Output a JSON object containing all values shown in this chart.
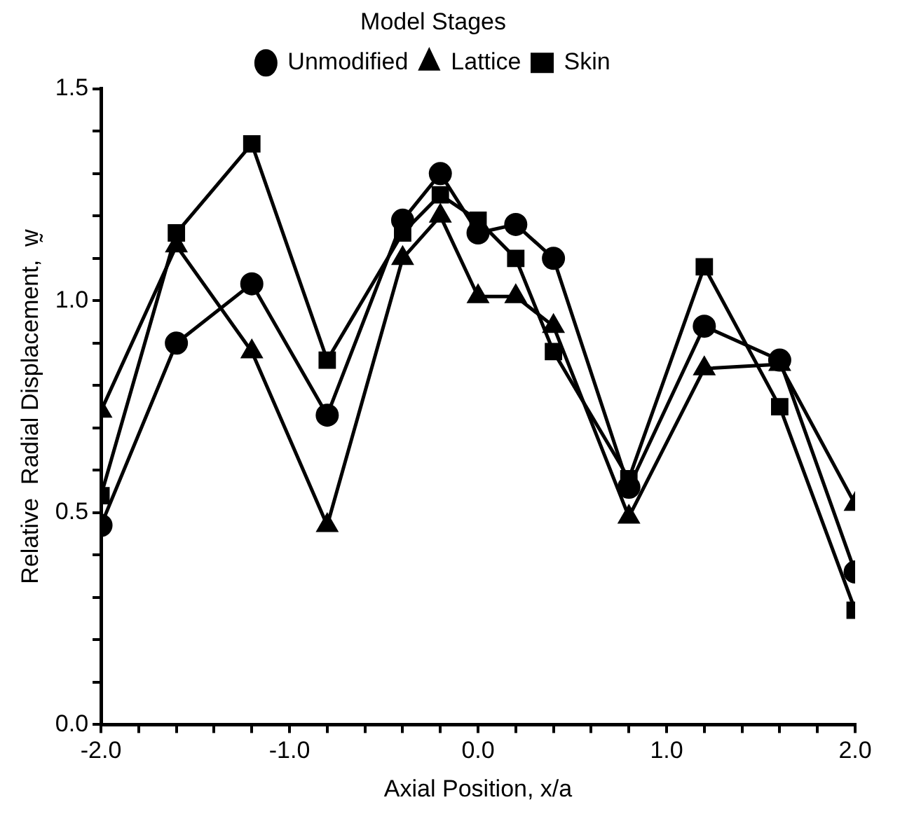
{
  "chart_data": {
    "type": "line",
    "xlabel": "Axial Position, x/a",
    "ylabel": "Relative  Radial Displacement,  w̰",
    "legend_title": "Model Stages",
    "legend": "top",
    "grid": false,
    "line_style": "solid",
    "x": [
      -2.0,
      -1.6,
      -1.2,
      -0.8,
      -0.4,
      -0.2,
      0.0,
      0.2,
      0.4,
      0.8,
      1.2,
      1.6,
      2.0
    ],
    "xlim": [
      -2.0,
      2.0
    ],
    "xticks": [
      {
        "value": -2,
        "label": "-2.0"
      },
      {
        "value": -1.8,
        "label": null
      },
      {
        "value": -1.6,
        "label": null
      },
      {
        "value": -1.4,
        "label": null
      },
      {
        "value": -1.2,
        "label": null
      },
      {
        "value": -1,
        "label": "-1.0"
      },
      {
        "value": -0.8,
        "label": null
      },
      {
        "value": -0.6,
        "label": null
      },
      {
        "value": -0.4,
        "label": null
      },
      {
        "value": -0.2,
        "label": null
      },
      {
        "value": 0,
        "label": "0.0"
      },
      {
        "value": 0.2,
        "label": null
      },
      {
        "value": 0.4,
        "label": null
      },
      {
        "value": 0.6,
        "label": null
      },
      {
        "value": 0.8,
        "label": null
      },
      {
        "value": 1,
        "label": "1.0"
      },
      {
        "value": 1.2,
        "label": null
      },
      {
        "value": 1.4,
        "label": null
      },
      {
        "value": 1.6,
        "label": null
      },
      {
        "value": 1.8,
        "label": null
      },
      {
        "value": 2,
        "label": "2.0"
      }
    ],
    "ylim": [
      0,
      1.5
    ],
    "yticks": [
      {
        "value": 0,
        "label": "0.0"
      },
      {
        "value": 0.1,
        "label": null
      },
      {
        "value": 0.2,
        "label": null
      },
      {
        "value": 0.3,
        "label": null
      },
      {
        "value": 0.4,
        "label": null
      },
      0.5,
      {
        "value": 0.6,
        "label": null
      },
      {
        "value": 0.7,
        "label": null
      },
      {
        "value": 0.8,
        "label": null
      },
      {
        "value": 0.9,
        "label": null
      },
      {
        "value": 1,
        "label": "1.0"
      },
      {
        "value": 1.1,
        "label": null
      },
      {
        "value": 1.2,
        "label": null
      },
      {
        "value": 1.3,
        "label": null
      },
      {
        "value": 1.4,
        "label": null
      },
      1.5
    ],
    "series": [
      {
        "name": "Unmodified",
        "color": "#000000",
        "marker": "circle",
        "values": [
          0.47,
          0.9,
          1.04,
          0.73,
          1.19,
          1.3,
          1.16,
          1.18,
          1.1,
          0.56,
          0.94,
          0.86,
          0.36
        ]
      },
      {
        "name": "Lattice",
        "color": "#000000",
        "marker": "triangle",
        "values": [
          0.74,
          1.13,
          0.88,
          0.47,
          1.1,
          1.2,
          1.01,
          1.01,
          0.94,
          0.49,
          0.84,
          0.85,
          0.52
        ]
      },
      {
        "name": "Skin",
        "color": "#000000",
        "marker": "square",
        "values": [
          0.54,
          1.16,
          1.37,
          0.86,
          1.16,
          1.25,
          1.19,
          1.1,
          0.88,
          0.58,
          1.08,
          0.75,
          0.27
        ]
      }
    ]
  }
}
